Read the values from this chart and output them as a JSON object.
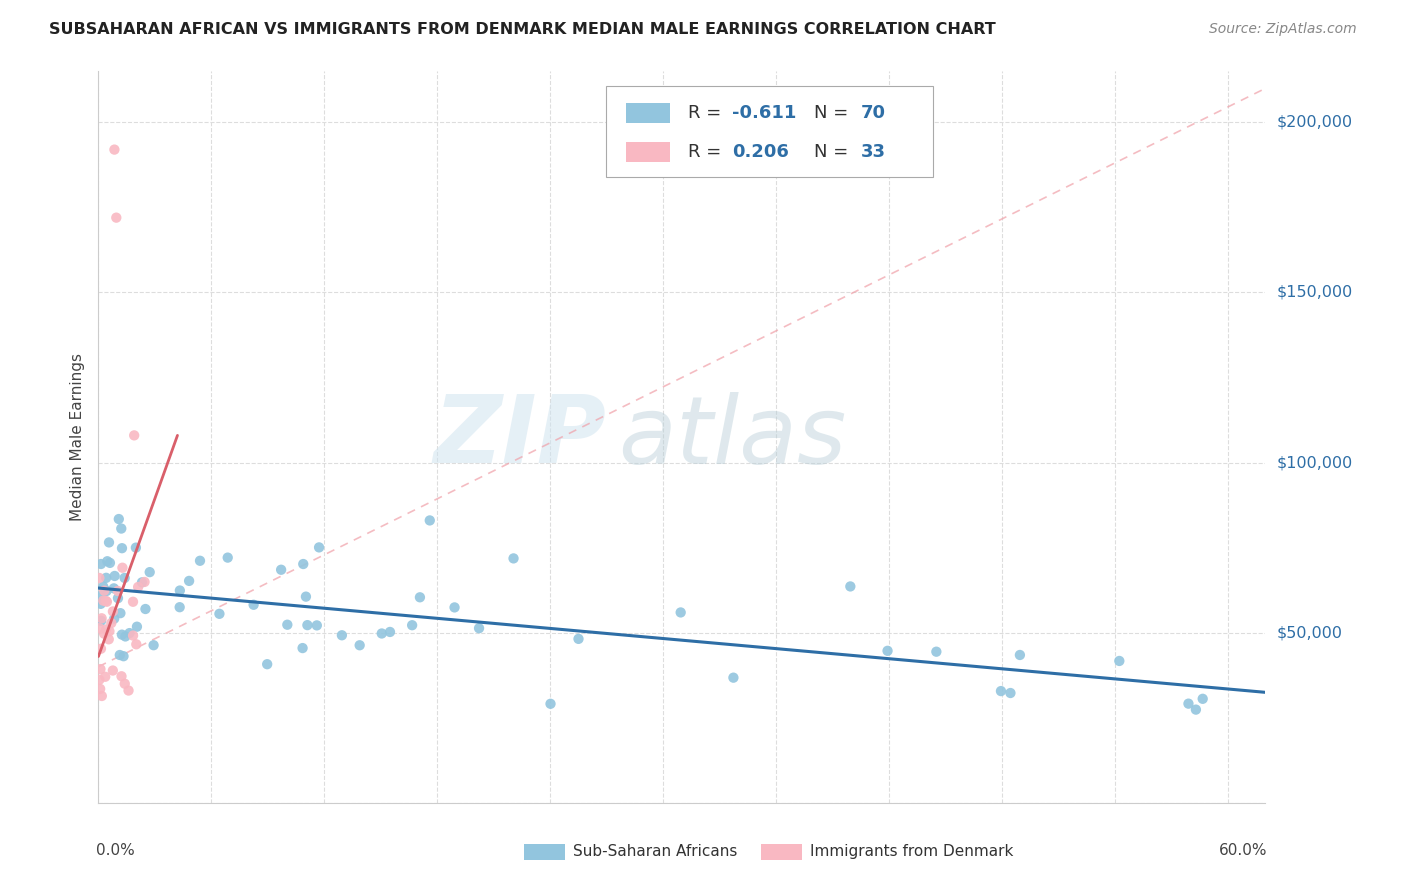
{
  "title": "SUBSAHARAN AFRICAN VS IMMIGRANTS FROM DENMARK MEDIAN MALE EARNINGS CORRELATION CHART",
  "source": "Source: ZipAtlas.com",
  "ylabel": "Median Male Earnings",
  "yticks": [
    0,
    50000,
    100000,
    150000,
    200000
  ],
  "ytick_labels": [
    "",
    "$50,000",
    "$100,000",
    "$150,000",
    "$200,000"
  ],
  "xlim": [
    0.0,
    0.62
  ],
  "ylim": [
    0,
    215000
  ],
  "r_blue": -0.611,
  "n_blue": 70,
  "r_pink": 0.206,
  "n_pink": 33,
  "blue_color": "#92C5DE",
  "pink_color": "#F9B8C2",
  "trend_blue_color": "#2E6EA6",
  "trend_pink_solid_color": "#D95F6A",
  "trend_pink_dash_color": "#F0A0A8",
  "title_fontsize": 11.5,
  "axis_label_color": "#444444",
  "tick_label_color": "#2E6EA6",
  "source_color": "#888888"
}
